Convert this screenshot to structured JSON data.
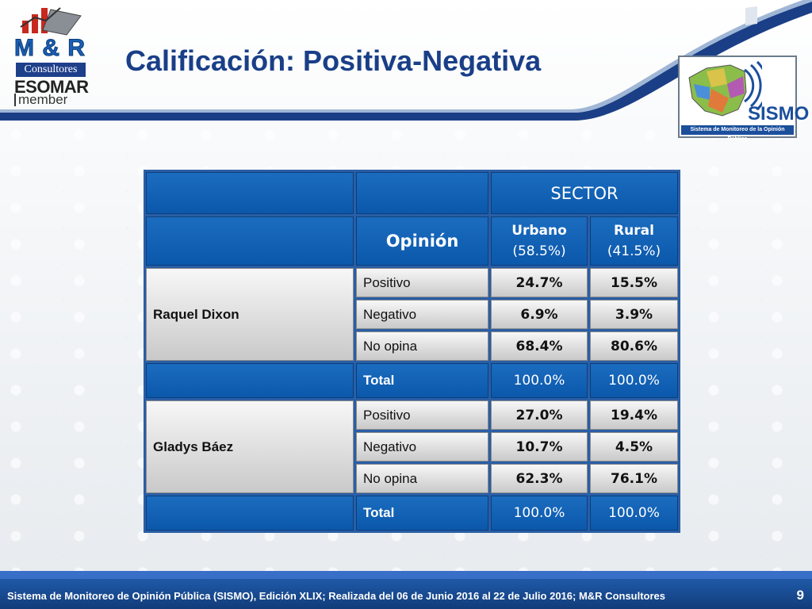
{
  "header": {
    "title": "Calificación: Positiva-Negativa",
    "logo_left": {
      "brand": "M & R",
      "sub": "Consultores",
      "org": "ESOMAR",
      "member": "member"
    },
    "logo_right": {
      "name": "SISMO",
      "caption": "Sistema de Monitoreo de la Opinión Pública"
    }
  },
  "table": {
    "sector_label": "SECTOR",
    "opinion_label": "Opinión",
    "columns": [
      {
        "name": "Urbano",
        "share": "(58.5%)"
      },
      {
        "name": "Rural",
        "share": "(41.5%)"
      }
    ],
    "candidates": [
      {
        "name": "Raquel Dixon",
        "rows": [
          {
            "label": "Positivo",
            "values": [
              "24.7%",
              "15.5%"
            ]
          },
          {
            "label": "Negativo",
            "values": [
              "6.9%",
              "3.9%"
            ]
          },
          {
            "label": "No opina",
            "values": [
              "68.4%",
              "80.6%"
            ]
          }
        ],
        "total": {
          "label": "Total",
          "values": [
            "100.0%",
            "100.0%"
          ]
        }
      },
      {
        "name": "Gladys Báez",
        "rows": [
          {
            "label": "Positivo",
            "values": [
              "27.0%",
              "19.4%"
            ]
          },
          {
            "label": "Negativo",
            "values": [
              "10.7%",
              "4.5%"
            ]
          },
          {
            "label": "No opina",
            "values": [
              "62.3%",
              "76.1%"
            ]
          }
        ],
        "total": {
          "label": "Total",
          "values": [
            "100.0%",
            "100.0%"
          ]
        }
      }
    ]
  },
  "footer": {
    "text": "Sistema de Monitoreo de Opinión Pública (SISMO), Edición XLIX; Realizada del 06 de Junio 2016 al 22 de Julio 2016; M&R Consultores",
    "page_number": "9"
  },
  "colors": {
    "title": "#1a3f88",
    "table_blue": "#0b58ab",
    "footer_blue": "#1f5aa8"
  }
}
